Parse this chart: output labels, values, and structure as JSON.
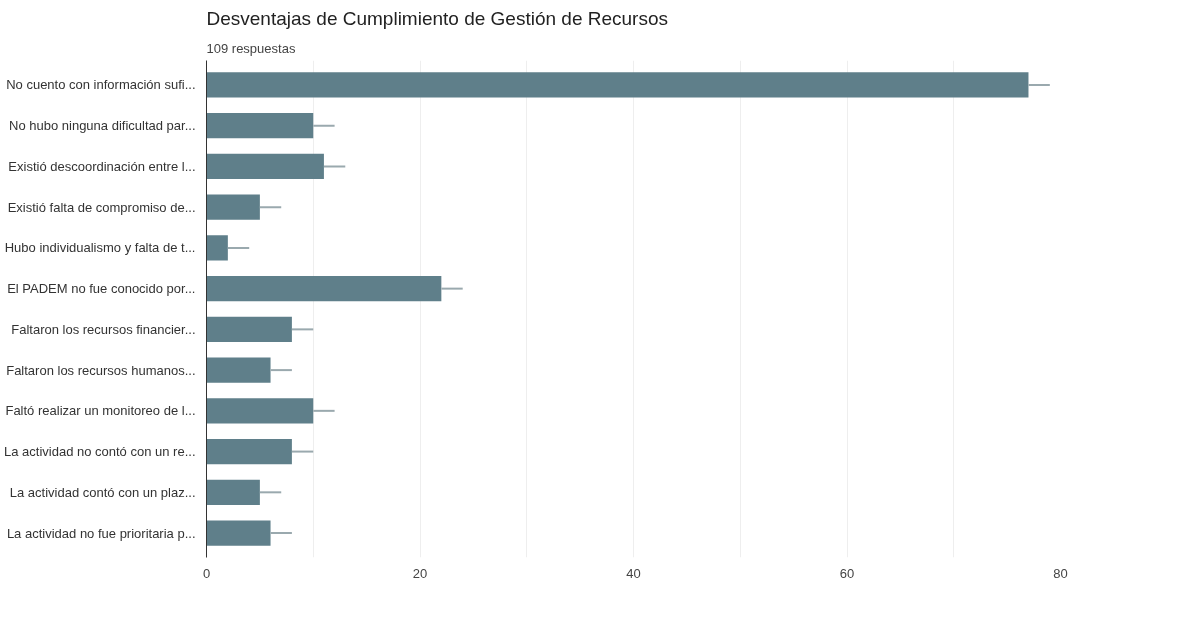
{
  "chart_data": {
    "type": "bar",
    "orientation": "horizontal",
    "title": "Desventajas de Cumplimiento de Gestión de Recursos",
    "subtitle": "109 respuestas",
    "categories": [
      "No cuento con información sufi...",
      "No hubo ninguna dificultad par...",
      "Existió descoordinación entre l...",
      "Existió falta de compromiso de...",
      "Hubo individualismo y falta de t...",
      "El PADEM no fue conocido por...",
      "Faltaron los recursos financier...",
      "Faltaron los recursos humanos...",
      "Faltó realizar un monitoreo de l...",
      "La actividad no contó con un re...",
      "La actividad contó con un plaz...",
      "La actividad no fue prioritaria p..."
    ],
    "values": [
      77,
      10,
      11,
      5,
      2,
      22,
      8,
      6,
      10,
      8,
      5,
      6
    ],
    "errors": [
      [
        77,
        79
      ],
      [
        10,
        12
      ],
      [
        11,
        13
      ],
      [
        5,
        7
      ],
      [
        2,
        4
      ],
      [
        22,
        24
      ],
      [
        8,
        10
      ],
      [
        6,
        8
      ],
      [
        10,
        12
      ],
      [
        8,
        10
      ],
      [
        5,
        7
      ],
      [
        6,
        8
      ]
    ],
    "color": "#5f7f8a",
    "xlim": [
      0,
      80
    ],
    "xticks": [
      0,
      {
        "value": 10,
        "label": null
      },
      20,
      {
        "value": 30,
        "label": null
      },
      40,
      {
        "value": 50,
        "label": null
      },
      60,
      {
        "value": 70,
        "label": null
      },
      80
    ],
    "grid": "x"
  }
}
